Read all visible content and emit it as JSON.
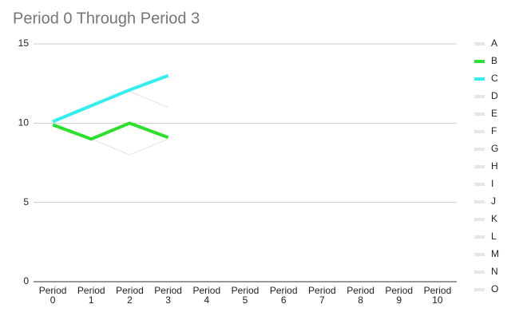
{
  "chart_data": {
    "type": "line",
    "title": "Period 0 Through Period 3",
    "categories": [
      "Period 0",
      "Period 1",
      "Period 2",
      "Period 3",
      "Period 4",
      "Period 5",
      "Period 6",
      "Period 7",
      "Period 8",
      "Period 9",
      "Period 10"
    ],
    "ylim": [
      0,
      15
    ],
    "yticks": [
      0,
      5,
      10,
      15
    ],
    "grid": true,
    "legend": "right",
    "series": [
      {
        "name": "A",
        "color": "#e6e6e6",
        "values": [
          10,
          9,
          8,
          9,
          null,
          null,
          null,
          null,
          null,
          null,
          null
        ]
      },
      {
        "name": "B",
        "color": "#2ee02e",
        "values": [
          9.9,
          9,
          10,
          9.1,
          null,
          null,
          null,
          null,
          null,
          null,
          null
        ]
      },
      {
        "name": "C",
        "color": "#33eeee",
        "values": [
          10.1,
          11.1,
          12.1,
          13,
          null,
          null,
          null,
          null,
          null,
          null,
          null
        ]
      },
      {
        "name": "D",
        "color": "#e6e6e6",
        "values": [
          null,
          null,
          12,
          11,
          null,
          null,
          null,
          null,
          null,
          null,
          null
        ]
      },
      {
        "name": "E",
        "color": "#e6e6e6",
        "values": [
          null,
          null,
          null,
          null,
          null,
          null,
          null,
          null,
          null,
          null,
          null
        ]
      },
      {
        "name": "F",
        "color": "#e6e6e6",
        "values": [
          null,
          null,
          null,
          null,
          null,
          null,
          null,
          null,
          null,
          null,
          null
        ]
      },
      {
        "name": "G",
        "color": "#e6e6e6",
        "values": [
          null,
          null,
          null,
          null,
          null,
          null,
          null,
          null,
          null,
          null,
          null
        ]
      },
      {
        "name": "H",
        "color": "#e6e6e6",
        "values": [
          null,
          null,
          null,
          null,
          null,
          null,
          null,
          null,
          null,
          null,
          null
        ]
      },
      {
        "name": "I",
        "color": "#e6e6e6",
        "values": [
          null,
          null,
          null,
          null,
          null,
          null,
          null,
          null,
          null,
          null,
          null
        ]
      },
      {
        "name": "J",
        "color": "#e6e6e6",
        "values": [
          null,
          null,
          null,
          null,
          null,
          null,
          null,
          null,
          null,
          null,
          null
        ]
      },
      {
        "name": "K",
        "color": "#e6e6e6",
        "values": [
          null,
          null,
          null,
          null,
          null,
          null,
          null,
          null,
          null,
          null,
          null
        ]
      },
      {
        "name": "L",
        "color": "#e6e6e6",
        "values": [
          null,
          null,
          null,
          null,
          null,
          null,
          null,
          null,
          null,
          null,
          null
        ]
      },
      {
        "name": "M",
        "color": "#e6e6e6",
        "values": [
          null,
          null,
          null,
          null,
          null,
          null,
          null,
          null,
          null,
          null,
          null
        ]
      },
      {
        "name": "N",
        "color": "#e6e6e6",
        "values": [
          null,
          null,
          null,
          null,
          null,
          null,
          null,
          null,
          null,
          null,
          null
        ]
      },
      {
        "name": "O",
        "color": "#e6e6e6",
        "values": [
          null,
          null,
          null,
          null,
          null,
          null,
          null,
          null,
          null,
          null,
          null
        ]
      }
    ]
  }
}
